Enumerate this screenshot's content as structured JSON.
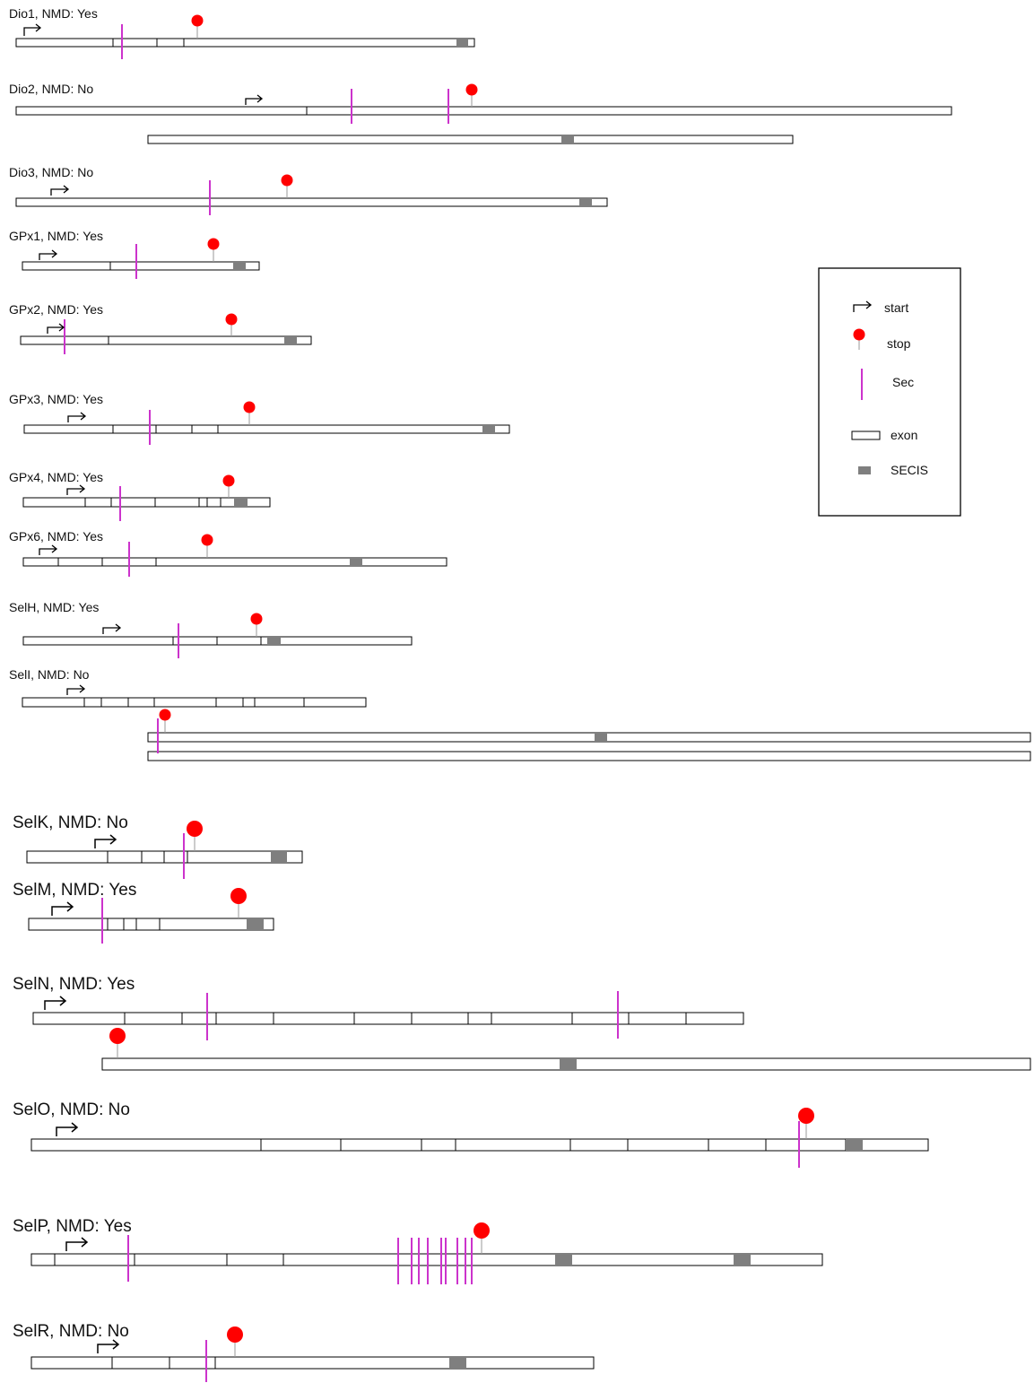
{
  "colors": {
    "exon_fill": "#ffffff",
    "exon_stroke": "#000000",
    "secis": "#7f7f7f",
    "stop": "#ff0000",
    "sec": "#cc33cc",
    "start_arrow": "#000000"
  },
  "legend": {
    "start": "start",
    "stop": "stop",
    "sec": "Sec",
    "exon": "exon",
    "secis": "SECIS"
  },
  "genes": [
    {
      "label": "Dio1, NMD: Yes"
    },
    {
      "label": "Dio2, NMD: No"
    },
    {
      "label": "Dio3, NMD: No"
    },
    {
      "label": "GPx1, NMD: Yes"
    },
    {
      "label": "GPx2, NMD: Yes"
    },
    {
      "label": "GPx3, NMD: Yes"
    },
    {
      "label": "GPx4, NMD: Yes"
    },
    {
      "label": "GPx6, NMD: Yes"
    },
    {
      "label": "SelH, NMD: Yes"
    },
    {
      "label": "SelI, NMD: No"
    },
    {
      "label": "SelK, NMD: No"
    },
    {
      "label": "SelM, NMD: Yes"
    },
    {
      "label": "SelN, NMD: Yes"
    },
    {
      "label": "SelO, NMD: No"
    },
    {
      "label": "SelP, NMD: Yes"
    },
    {
      "label": "SelR, NMD: No"
    }
  ]
}
